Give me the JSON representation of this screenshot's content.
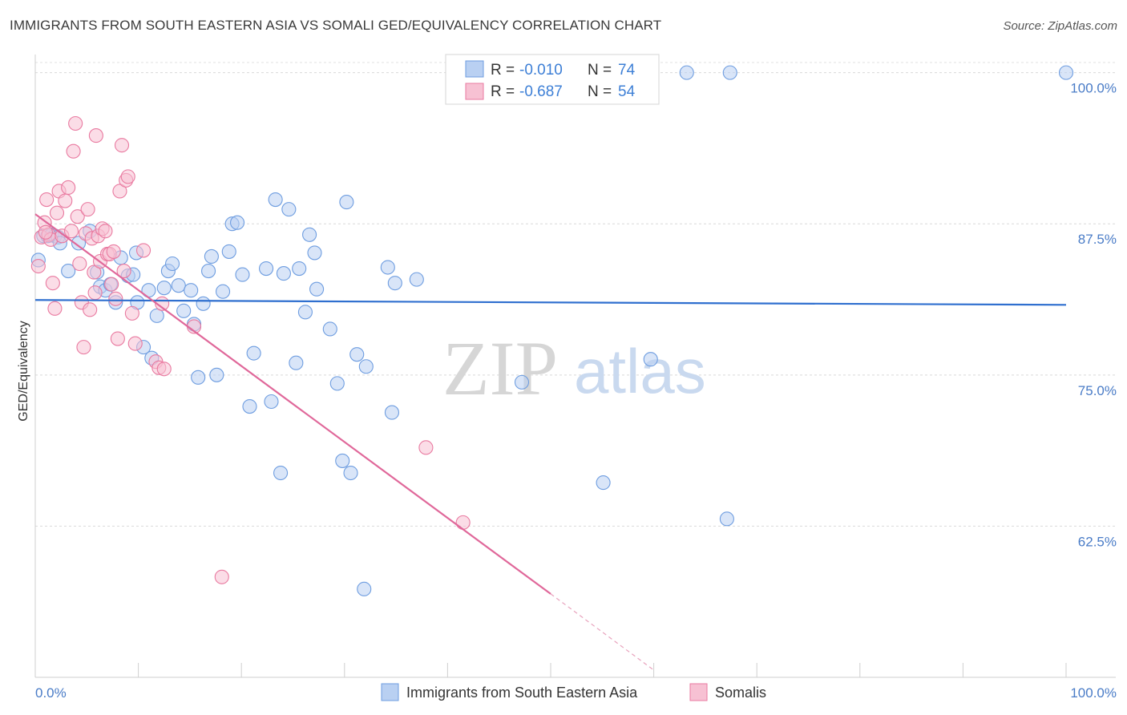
{
  "title": "IMMIGRANTS FROM SOUTH EASTERN ASIA VS SOMALI GED/EQUIVALENCY CORRELATION CHART",
  "source": "Source: ZipAtlas.com",
  "watermark": {
    "zip": "ZIP",
    "atlas": "atlas"
  },
  "legend": {
    "rows": [
      {
        "r_label": "R =",
        "r_value": "-0.010",
        "n_label": "N =",
        "n_value": "74"
      },
      {
        "r_label": "R =",
        "r_value": "-0.687",
        "n_label": "N =",
        "n_value": "54"
      }
    ]
  },
  "chart_data": {
    "type": "scatter",
    "ylabel": "GED/Equivalency",
    "xlim": [
      0,
      100
    ],
    "ylim": [
      50,
      101.5
    ],
    "x_tick_labels": [
      "0.0%",
      "100.0%"
    ],
    "y_ticks": [
      62.5,
      75.0,
      87.5,
      100.0
    ],
    "y_tick_labels": [
      "62.5%",
      "75.0%",
      "87.5%",
      "100.0%"
    ],
    "grid": true,
    "series": [
      {
        "name": "Immigrants from South Eastern Asia",
        "color": "#6e9de0",
        "fill": "#b9d0f2",
        "trend": {
          "x0": 0,
          "y0": 81.2,
          "x1": 100,
          "y1": 80.8
        },
        "points": [
          [
            0.3,
            84.5
          ],
          [
            0.8,
            86.5
          ],
          [
            1.2,
            86.5
          ],
          [
            1.6,
            86.6
          ],
          [
            1.9,
            86.5
          ],
          [
            2.2,
            86.4
          ],
          [
            2.4,
            85.9
          ],
          [
            3.2,
            83.6
          ],
          [
            4.2,
            85.9
          ],
          [
            5.3,
            86.9
          ],
          [
            6.0,
            83.5
          ],
          [
            6.3,
            82.3
          ],
          [
            6.8,
            82.0
          ],
          [
            7.3,
            82.5
          ],
          [
            7.8,
            81.0
          ],
          [
            8.3,
            84.7
          ],
          [
            9.0,
            83.2
          ],
          [
            9.5,
            83.3
          ],
          [
            9.8,
            85.1
          ],
          [
            10.5,
            77.3
          ],
          [
            11.0,
            82.0
          ],
          [
            11.3,
            76.4
          ],
          [
            11.8,
            79.9
          ],
          [
            12.5,
            82.2
          ],
          [
            12.9,
            83.6
          ],
          [
            13.3,
            84.2
          ],
          [
            13.9,
            82.4
          ],
          [
            14.4,
            80.3
          ],
          [
            15.1,
            82.0
          ],
          [
            15.4,
            79.2
          ],
          [
            15.8,
            74.8
          ],
          [
            16.3,
            80.9
          ],
          [
            16.8,
            83.6
          ],
          [
            17.1,
            84.8
          ],
          [
            17.6,
            75.0
          ],
          [
            18.2,
            81.9
          ],
          [
            18.8,
            85.2
          ],
          [
            19.1,
            87.5
          ],
          [
            19.6,
            87.6
          ],
          [
            20.1,
            83.3
          ],
          [
            20.8,
            72.4
          ],
          [
            21.2,
            76.8
          ],
          [
            22.4,
            83.8
          ],
          [
            22.9,
            72.8
          ],
          [
            23.3,
            89.5
          ],
          [
            23.8,
            66.9
          ],
          [
            24.1,
            83.4
          ],
          [
            24.6,
            88.7
          ],
          [
            25.3,
            76.0
          ],
          [
            25.6,
            83.8
          ],
          [
            26.2,
            80.2
          ],
          [
            26.6,
            86.6
          ],
          [
            27.1,
            85.1
          ],
          [
            27.3,
            82.1
          ],
          [
            28.6,
            78.8
          ],
          [
            29.3,
            74.3
          ],
          [
            29.8,
            67.9
          ],
          [
            30.2,
            89.3
          ],
          [
            30.6,
            66.9
          ],
          [
            31.2,
            76.7
          ],
          [
            32.1,
            75.7
          ],
          [
            34.2,
            83.9
          ],
          [
            34.6,
            71.9
          ],
          [
            34.9,
            82.6
          ],
          [
            37.0,
            82.9
          ],
          [
            47.2,
            74.4
          ],
          [
            55.1,
            66.1
          ],
          [
            59.7,
            76.3
          ],
          [
            63.2,
            100.0
          ],
          [
            67.1,
            63.1
          ],
          [
            67.4,
            100.0
          ],
          [
            100.0,
            100.0
          ],
          [
            31.9,
            57.3
          ],
          [
            9.9,
            81.0
          ]
        ]
      },
      {
        "name": "Somalis",
        "color": "#e97aa0",
        "fill": "#f7c1d3",
        "trend": {
          "x0": 0,
          "y0": 88.3,
          "x1": 50,
          "y1": 56.9,
          "dash_x1": 60,
          "dash_y1": 50.6
        },
        "points": [
          [
            0.3,
            84.0
          ],
          [
            0.6,
            86.4
          ],
          [
            0.9,
            87.6
          ],
          [
            1.1,
            89.5
          ],
          [
            1.3,
            86.6
          ],
          [
            1.5,
            86.2
          ],
          [
            1.7,
            82.6
          ],
          [
            1.9,
            80.5
          ],
          [
            2.1,
            88.4
          ],
          [
            2.3,
            90.2
          ],
          [
            2.6,
            86.5
          ],
          [
            2.9,
            89.4
          ],
          [
            3.2,
            90.5
          ],
          [
            3.5,
            86.9
          ],
          [
            3.7,
            93.5
          ],
          [
            3.9,
            95.8
          ],
          [
            4.1,
            88.1
          ],
          [
            4.3,
            84.2
          ],
          [
            4.5,
            81.0
          ],
          [
            4.7,
            77.3
          ],
          [
            4.9,
            86.7
          ],
          [
            5.1,
            88.7
          ],
          [
            5.3,
            80.4
          ],
          [
            5.5,
            86.3
          ],
          [
            5.7,
            83.5
          ],
          [
            5.8,
            81.8
          ],
          [
            5.9,
            94.8
          ],
          [
            6.1,
            86.5
          ],
          [
            6.3,
            84.4
          ],
          [
            6.5,
            87.1
          ],
          [
            6.8,
            86.9
          ],
          [
            7.0,
            85.0
          ],
          [
            7.2,
            85.0
          ],
          [
            7.4,
            82.5
          ],
          [
            7.6,
            85.2
          ],
          [
            7.8,
            81.3
          ],
          [
            8.0,
            78.0
          ],
          [
            8.2,
            90.2
          ],
          [
            8.4,
            94.0
          ],
          [
            8.6,
            83.6
          ],
          [
            8.8,
            91.1
          ],
          [
            9.0,
            91.4
          ],
          [
            9.4,
            80.1
          ],
          [
            9.7,
            77.6
          ],
          [
            10.5,
            85.3
          ],
          [
            11.7,
            76.1
          ],
          [
            12.0,
            75.6
          ],
          [
            12.3,
            80.9
          ],
          [
            12.5,
            75.5
          ],
          [
            15.4,
            79.0
          ],
          [
            18.1,
            58.3
          ],
          [
            37.9,
            69.0
          ],
          [
            41.5,
            62.8
          ],
          [
            1.0,
            86.8
          ]
        ]
      }
    ]
  }
}
